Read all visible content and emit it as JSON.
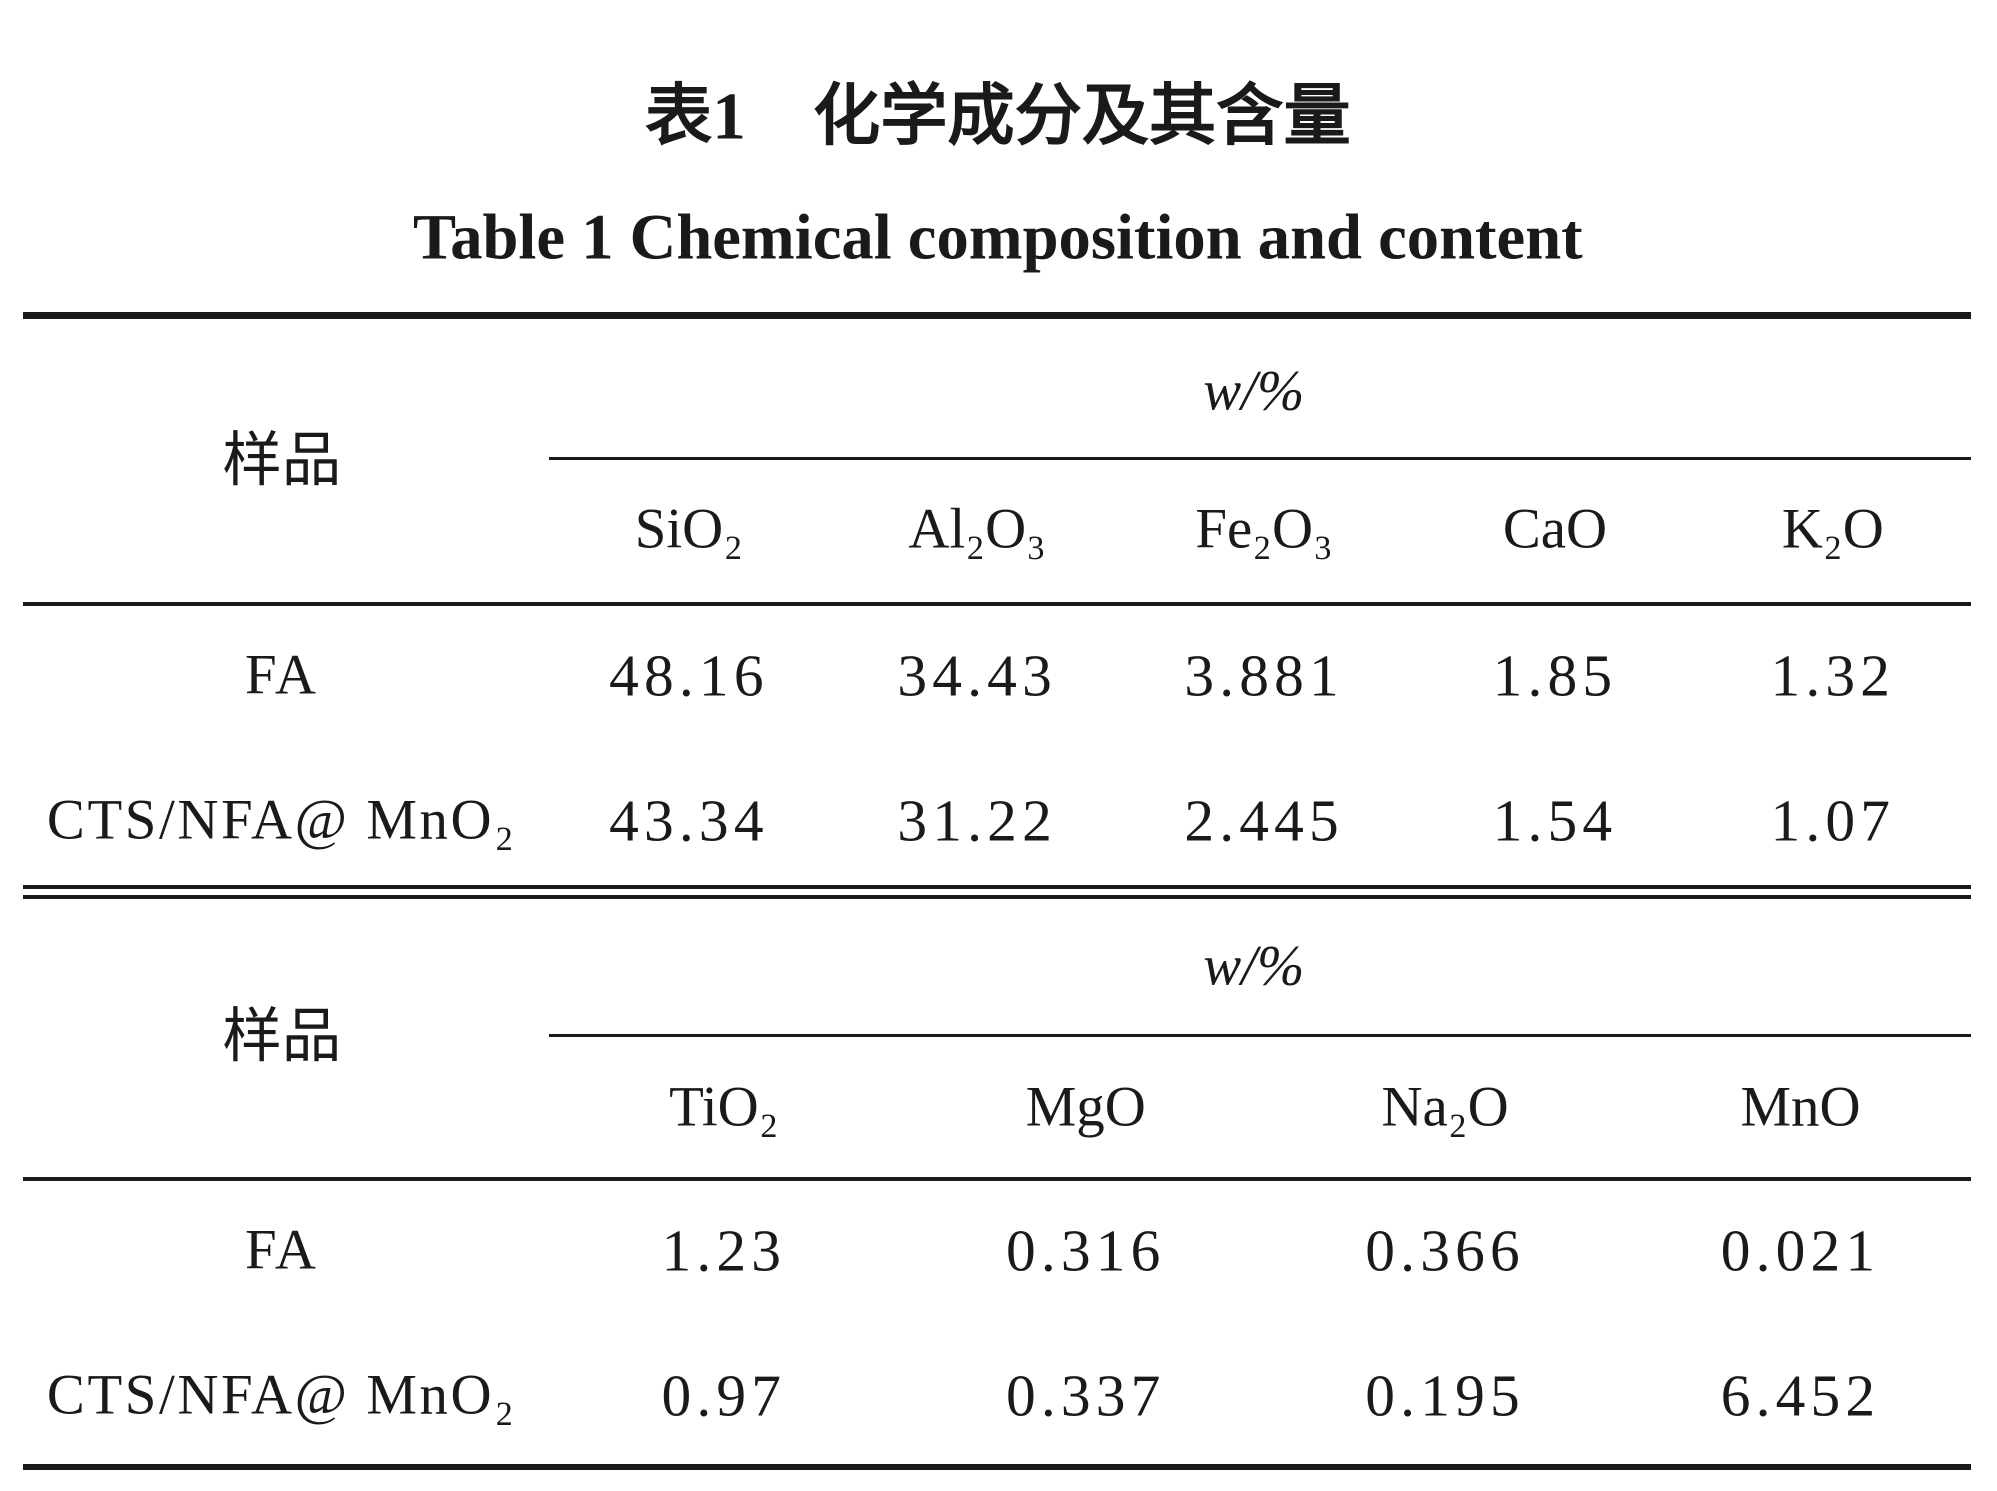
{
  "title_zh": "表1　化学成分及其含量",
  "title_en": "Table 1   Chemical composition and content",
  "parts": [
    {
      "sample_header": "样品",
      "unit": "w/%",
      "columns": [
        "SiO₂",
        "Al₂O₃",
        "Fe₂O₃",
        "CaO",
        "K₂O"
      ],
      "rows": [
        {
          "sample": "FA",
          "values": [
            "48.16",
            "34.43",
            "3.881",
            "1.85",
            "1.32"
          ]
        },
        {
          "sample": "CTS/NFA@ MnO₂",
          "values": [
            "43.34",
            "31.22",
            "2.445",
            "1.54",
            "1.07"
          ]
        }
      ]
    },
    {
      "sample_header": "样品",
      "unit": "w/%",
      "columns": [
        "TiO₂",
        "MgO",
        "Na₂O",
        "MnO"
      ],
      "rows": [
        {
          "sample": "FA",
          "values": [
            "1.23",
            "0.316",
            "0.366",
            "0.021"
          ]
        },
        {
          "sample": "CTS/NFA@ MnO₂",
          "values": [
            "0.97",
            "0.337",
            "0.195",
            "6.452"
          ]
        }
      ]
    }
  ]
}
